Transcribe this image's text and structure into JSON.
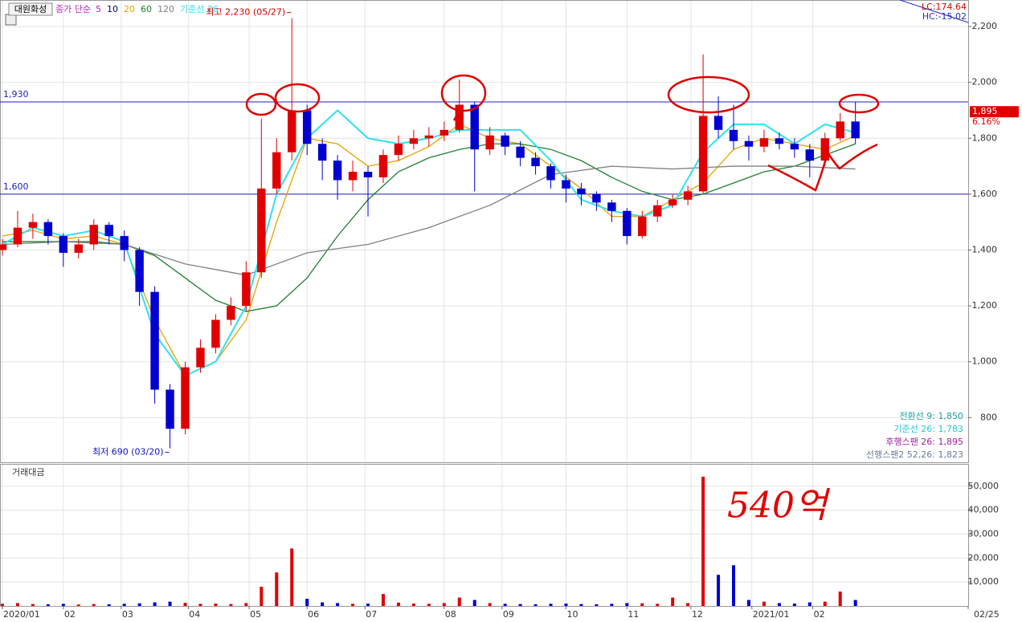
{
  "chart_data": {
    "type": "candlestick",
    "title": "대원화성",
    "ma_prefix": "종가 단순",
    "legend": [
      {
        "name": "5",
        "color": "#c020c0"
      },
      {
        "name": "10",
        "color": "#000080"
      }
    ],
    "x": [
      0,
      5,
      10,
      15,
      20,
      25,
      30,
      35,
      40,
      45,
      50,
      55,
      60,
      65,
      70,
      75,
      80,
      85,
      90,
      95,
      100,
      105,
      110,
      115,
      120,
      125,
      130,
      135,
      140,
      145,
      150,
      155,
      160,
      165,
      170,
      175,
      180,
      185,
      190,
      195,
      200,
      205,
      210,
      215,
      220,
      225,
      230,
      235,
      240,
      245,
      250,
      255,
      260,
      265,
      270,
      275,
      280
    ],
    "ohlc": [
      [
        1400,
        1440,
        1380,
        1420
      ],
      [
        1420,
        1540,
        1410,
        1480
      ],
      [
        1480,
        1530,
        1440,
        1500
      ],
      [
        1500,
        1510,
        1420,
        1450
      ],
      [
        1450,
        1460,
        1340,
        1390
      ],
      [
        1390,
        1440,
        1370,
        1420
      ],
      [
        1420,
        1510,
        1400,
        1490
      ],
      [
        1490,
        1500,
        1420,
        1450
      ],
      [
        1450,
        1470,
        1360,
        1400
      ],
      [
        1400,
        1410,
        1200,
        1250
      ],
      [
        1250,
        1270,
        850,
        900
      ],
      [
        900,
        920,
        690,
        760
      ],
      [
        760,
        1000,
        740,
        980
      ],
      [
        980,
        1080,
        960,
        1050
      ],
      [
        1050,
        1170,
        1030,
        1150
      ],
      [
        1150,
        1230,
        1130,
        1200
      ],
      [
        1200,
        1360,
        1180,
        1320
      ],
      [
        1320,
        1870,
        1300,
        1620
      ],
      [
        1620,
        1800,
        1600,
        1750
      ],
      [
        1750,
        2230,
        1720,
        1900
      ],
      [
        1900,
        1920,
        1740,
        1780
      ],
      [
        1780,
        1800,
        1650,
        1720
      ],
      [
        1720,
        1740,
        1580,
        1650
      ],
      [
        1650,
        1720,
        1610,
        1680
      ],
      [
        1680,
        1700,
        1520,
        1660
      ],
      [
        1660,
        1760,
        1640,
        1740
      ],
      [
        1740,
        1810,
        1720,
        1780
      ],
      [
        1780,
        1830,
        1760,
        1800
      ],
      [
        1800,
        1840,
        1770,
        1810
      ],
      [
        1810,
        1860,
        1790,
        1830
      ],
      [
        1830,
        2010,
        1820,
        1920
      ],
      [
        1920,
        1930,
        1610,
        1760
      ],
      [
        1760,
        1840,
        1740,
        1810
      ],
      [
        1810,
        1820,
        1740,
        1770
      ],
      [
        1770,
        1790,
        1700,
        1730
      ],
      [
        1730,
        1750,
        1670,
        1700
      ],
      [
        1700,
        1710,
        1620,
        1650
      ],
      [
        1650,
        1670,
        1570,
        1620
      ],
      [
        1620,
        1640,
        1560,
        1600
      ],
      [
        1600,
        1610,
        1540,
        1570
      ],
      [
        1570,
        1580,
        1500,
        1540
      ],
      [
        1540,
        1550,
        1420,
        1450
      ],
      [
        1450,
        1540,
        1440,
        1520
      ],
      [
        1520,
        1580,
        1500,
        1560
      ],
      [
        1560,
        1600,
        1550,
        1580
      ],
      [
        1580,
        1630,
        1560,
        1610
      ],
      [
        1610,
        2100,
        1600,
        1880
      ],
      [
        1880,
        1950,
        1800,
        1830
      ],
      [
        1830,
        1920,
        1760,
        1790
      ],
      [
        1790,
        1810,
        1720,
        1770
      ],
      [
        1770,
        1830,
        1750,
        1800
      ],
      [
        1800,
        1820,
        1760,
        1780
      ],
      [
        1780,
        1800,
        1730,
        1760
      ],
      [
        1760,
        1780,
        1660,
        1720
      ],
      [
        1720,
        1820,
        1700,
        1800
      ],
      [
        1800,
        1890,
        1790,
        1860
      ],
      [
        1860,
        1930,
        1780,
        1800
      ]
    ],
    "up_color": "#e00000",
    "down_color": "#0000d0",
    "series": [
      {
        "name": "20",
        "color": "#e8a000",
        "x": [
          0,
          10,
          20,
          30,
          40,
          50,
          60,
          70,
          80,
          90,
          100,
          110,
          120,
          130,
          140,
          150,
          160,
          170,
          180,
          190,
          200,
          210,
          220,
          230,
          240,
          250,
          260,
          270,
          280
        ],
        "values": [
          1450,
          1470,
          1440,
          1450,
          1420,
          1150,
          950,
          1000,
          1150,
          1500,
          1800,
          1780,
          1700,
          1720,
          1770,
          1850,
          1800,
          1780,
          1700,
          1620,
          1520,
          1520,
          1580,
          1640,
          1760,
          1800,
          1780,
          1760,
          1810
        ]
      },
      {
        "name": "60",
        "color": "#208030",
        "x": [
          0,
          10,
          20,
          30,
          40,
          50,
          60,
          70,
          80,
          90,
          100,
          110,
          120,
          130,
          140,
          150,
          160,
          170,
          180,
          190,
          200,
          210,
          220,
          230,
          240,
          250,
          260,
          270,
          280
        ],
        "values": [
          1430,
          1430,
          1430,
          1430,
          1420,
          1380,
          1300,
          1220,
          1180,
          1200,
          1300,
          1450,
          1580,
          1680,
          1730,
          1760,
          1780,
          1780,
          1760,
          1720,
          1660,
          1610,
          1580,
          1600,
          1640,
          1680,
          1700,
          1740,
          1780
        ]
      },
      {
        "name": "120",
        "color": "#808080",
        "x": [
          0,
          20,
          40,
          60,
          80,
          100,
          120,
          140,
          160,
          180,
          200,
          220,
          240,
          260,
          280
        ],
        "values": [
          1420,
          1430,
          1420,
          1350,
          1310,
          1390,
          1420,
          1480,
          1560,
          1670,
          1700,
          1690,
          1700,
          1700,
          1690
        ]
      },
      {
        "name": "기준선 26",
        "color": "#30e0f0",
        "x": [
          0,
          10,
          20,
          30,
          40,
          50,
          60,
          70,
          80,
          90,
          100,
          110,
          120,
          130,
          140,
          150,
          160,
          170,
          180,
          190,
          200,
          210,
          220,
          230,
          240,
          250,
          260,
          270,
          280
        ],
        "values": [
          1420,
          1480,
          1450,
          1470,
          1430,
          1100,
          950,
          1000,
          1200,
          1600,
          1800,
          1900,
          1800,
          1780,
          1800,
          1830,
          1830,
          1830,
          1720,
          1580,
          1540,
          1520,
          1560,
          1750,
          1850,
          1850,
          1780,
          1850,
          1820
        ]
      }
    ],
    "xlim": [
      0,
      317
    ],
    "xticks": [
      {
        "value": 0,
        "label": "2020/01"
      },
      {
        "value": 20,
        "label": "02"
      },
      {
        "value": 39,
        "label": "03"
      },
      {
        "value": 61,
        "label": "04"
      },
      {
        "value": 81,
        "label": "05"
      },
      {
        "value": 100,
        "label": "06"
      },
      {
        "value": 119,
        "label": "07"
      },
      {
        "value": 145,
        "label": "08"
      },
      {
        "value": 164,
        "label": "09"
      },
      {
        "value": 185,
        "label": "10"
      },
      {
        "value": 205,
        "label": "11"
      },
      {
        "value": 226,
        "label": "12"
      },
      {
        "value": 246,
        "label": "2021/01"
      },
      {
        "value": 266,
        "label": "02"
      },
      {
        "value": 317,
        "label": "02/25"
      }
    ],
    "ylim": [
      640,
      2295
    ],
    "yticks": [
      {
        "value": 800,
        "label": "800"
      },
      {
        "value": 1000,
        "label": "1,000"
      },
      {
        "value": 1200,
        "label": "1,200"
      },
      {
        "value": 1400,
        "label": "1,400"
      },
      {
        "value": 1600,
        "label": "1,600"
      },
      {
        "value": 1800,
        "label": "1,800"
      },
      {
        "value": 2000,
        "label": "2,000"
      },
      {
        "value": 2200,
        "label": "2,200"
      }
    ],
    "hlines": [
      {
        "value": 1930,
        "label": "1,930"
      },
      {
        "value": 1600,
        "label": "1,600"
      }
    ],
    "high_label": "최고 2,230 (05/27)",
    "low_label": "최저 690 (03/20)",
    "lc": "LC:174.64",
    "hc": "HC:-15.02",
    "last_price": {
      "value": 1895,
      "label": "1,895"
    },
    "change": "6.16%",
    "ichimoku": [
      {
        "text": "전환선 9: 1,850",
        "color": "#20a0a0"
      },
      {
        "text": "기준선 26: 1,783",
        "color": "#20c8d8"
      },
      {
        "text": "후행스팬 26: 1,895",
        "color": "#a020a0"
      },
      {
        "text": "선행스팬2 52,26: 1,823",
        "color": "#6a7a9a"
      }
    ],
    "volume_title": "거래대금",
    "volume": [
      900,
      1200,
      800,
      700,
      900,
      600,
      800,
      700,
      900,
      1100,
      1500,
      1800,
      1300,
      900,
      1000,
      800,
      1200,
      8000,
      14000,
      24000,
      3000,
      1500,
      1200,
      900,
      1000,
      5000,
      1400,
      1000,
      900,
      1200,
      3500,
      2500,
      1200,
      900,
      800,
      700,
      900,
      1000,
      800,
      700,
      900,
      1200,
      1100,
      900,
      3500,
      1200,
      54000,
      13000,
      17000,
      2500,
      1800,
      1200,
      1000,
      1500,
      1800,
      6000,
      2500
    ],
    "vlim": [
      0,
      58000
    ],
    "vticks": [
      {
        "value": 10000,
        "label": "10,000"
      },
      {
        "value": 20000,
        "label": "20,000"
      },
      {
        "value": 30000,
        "label": "30,000"
      },
      {
        "value": 40000,
        "label": "40,000"
      },
      {
        "value": 50000,
        "label": "50,000"
      }
    ],
    "handwritten": "540억"
  }
}
